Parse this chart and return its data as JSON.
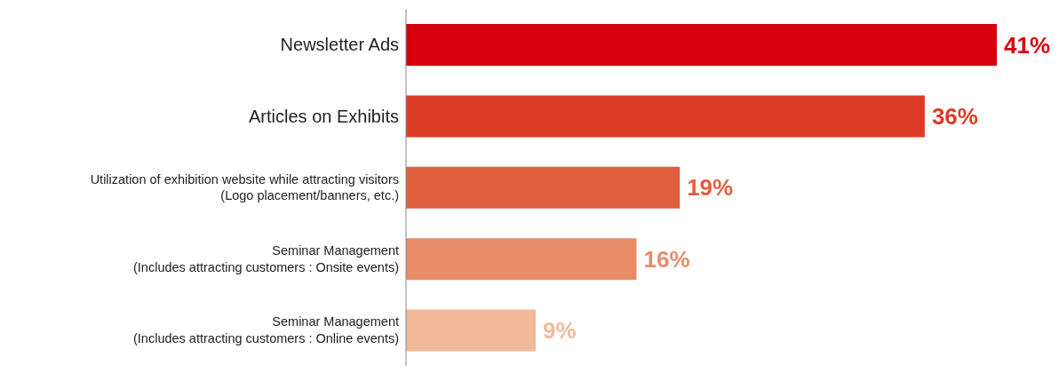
{
  "chart_data": {
    "type": "bar",
    "orientation": "horizontal",
    "categories": [
      "Newsletter Ads",
      "Articles on Exhibits",
      "Utilization of exhibition website while attracting visitors\n(Logo placement/banners, etc.)",
      "Seminar Management\n(Includes attracting customers : Onsite events)",
      "Seminar Management\n(Includes attracting customers : Online events)"
    ],
    "values": [
      41,
      36,
      19,
      16,
      9
    ],
    "colors": [
      "#d7000f",
      "#dc3c26",
      "#e05f3f",
      "#e98c68",
      "#f2b89b"
    ],
    "value_labels": [
      "41%",
      "36%",
      "19%",
      "16%",
      "9%"
    ],
    "grid": false,
    "legend": false
  }
}
